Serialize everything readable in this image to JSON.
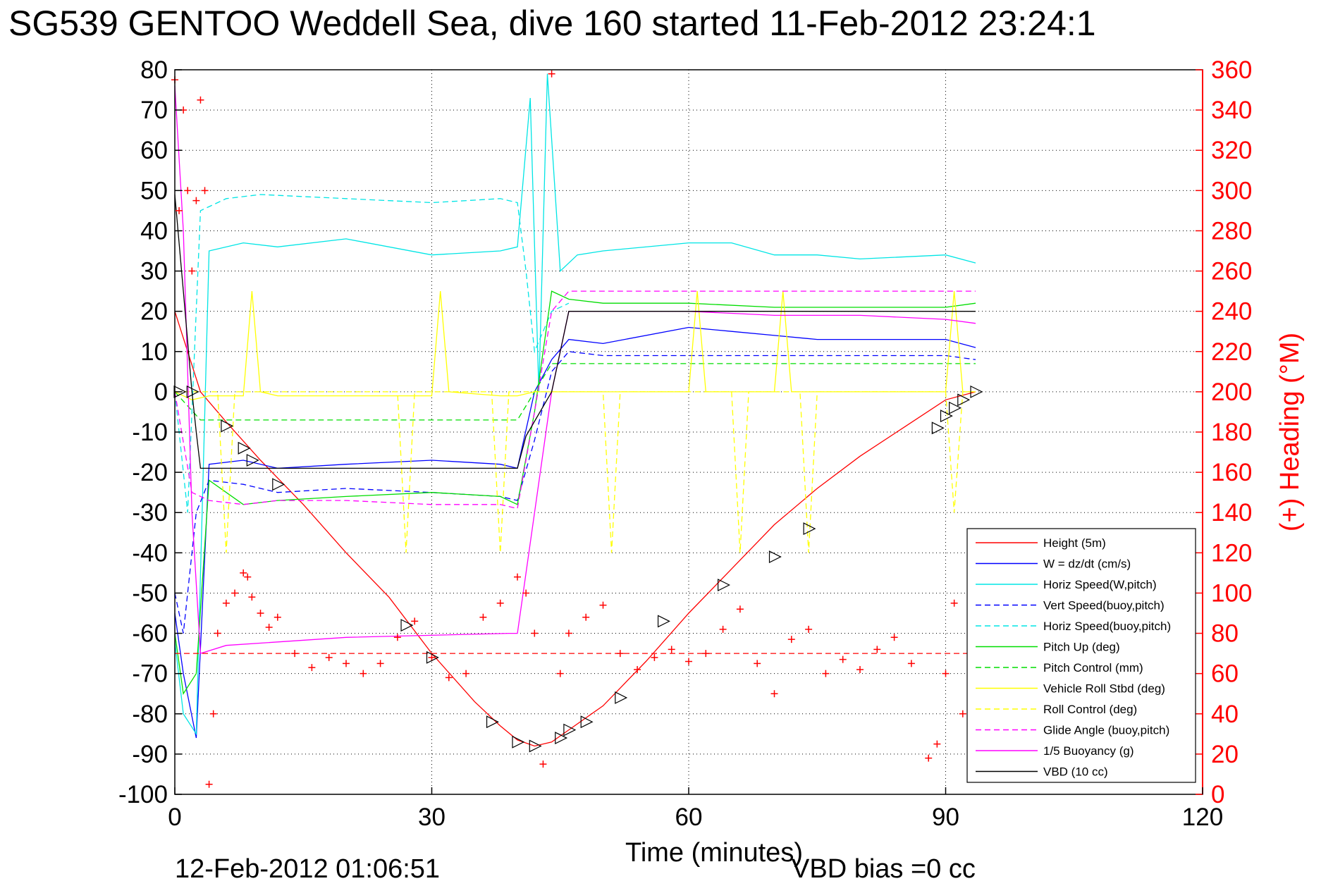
{
  "chart_data": {
    "type": "line",
    "title": "SG539 GENTOO Weddell Sea, dive 160 started 11-Feb-2012 23:24:1",
    "xlabel": "Time (minutes)",
    "ylabel_right": "(+) Heading (°M)",
    "footer_left": "12-Feb-2012 01:06:51",
    "footer_right": "VBD bias =0 cc",
    "xlim": [
      0,
      120
    ],
    "ylim_left": [
      -100,
      80
    ],
    "ylim_right": [
      0,
      360
    ],
    "xticks": [
      0,
      30,
      60,
      90,
      120
    ],
    "yticks_left": [
      80,
      70,
      60,
      50,
      40,
      30,
      20,
      10,
      0,
      -10,
      -20,
      -30,
      -40,
      -50,
      -60,
      -70,
      -80,
      -90,
      -100
    ],
    "yticks_right": [
      360,
      340,
      320,
      300,
      280,
      260,
      240,
      220,
      200,
      180,
      160,
      140,
      120,
      100,
      80,
      60,
      40,
      20,
      0
    ],
    "grid": true,
    "legend_position": "bottom-right",
    "colors": {
      "red": "#ff0000",
      "blue": "#0000ff",
      "cyan": "#00e5e5",
      "green": "#00dd00",
      "yellow": "#ffff00",
      "magenta": "#ff00ff",
      "black": "#000000"
    },
    "series": [
      {
        "name": "Height (5m)",
        "color": "red",
        "style": "solid",
        "x": [
          0,
          3,
          6,
          10,
          15,
          20,
          25,
          30,
          35,
          38,
          40,
          42,
          44,
          46,
          50,
          55,
          60,
          65,
          70,
          75,
          80,
          85,
          90,
          93.5
        ],
        "y": [
          20,
          0,
          -7.5,
          -17,
          -28,
          -40,
          -51,
          -65,
          -77,
          -83,
          -86.5,
          -88,
          -87,
          -84,
          -78,
          -67,
          -55,
          -44,
          -33,
          -24,
          -16,
          -9,
          -2,
          0
        ]
      },
      {
        "name": "W = dz/dt (cm/s)",
        "color": "blue",
        "style": "solid",
        "x": [
          0,
          1,
          2.5,
          4,
          8,
          12,
          20,
          30,
          38,
          40,
          42,
          44,
          46,
          50,
          60,
          65,
          70,
          75,
          80,
          90,
          93.5
        ],
        "y": [
          -55,
          -70,
          -86,
          -18,
          -17,
          -19,
          -18,
          -17,
          -18,
          -19,
          0,
          8,
          13,
          12,
          16,
          15,
          14,
          13,
          13,
          13,
          11
        ]
      },
      {
        "name": "Horiz Speed(W,pitch)",
        "color": "cyan",
        "style": "solid",
        "x": [
          0,
          1,
          2.5,
          4,
          8,
          12,
          20,
          30,
          38,
          40,
          41.5,
          42.5,
          43.5,
          45,
          47,
          50,
          60,
          65,
          70,
          75,
          80,
          90,
          93.5
        ],
        "y": [
          -62,
          -80,
          -85,
          35,
          37,
          36,
          38,
          34,
          35,
          36,
          73,
          0,
          79,
          30,
          34,
          35,
          37,
          37,
          34,
          34,
          33,
          34,
          32
        ]
      },
      {
        "name": "Vert Speed(buoy,pitch)",
        "color": "blue",
        "style": "dashed",
        "x": [
          0,
          1,
          2.5,
          4,
          8,
          12,
          20,
          30,
          38,
          40,
          42,
          44,
          46,
          50,
          60,
          70,
          80,
          90,
          93.5
        ],
        "y": [
          -50,
          -60,
          -30,
          -22,
          -23,
          -25,
          -24,
          -25,
          -26,
          -27,
          -12,
          5,
          10,
          9,
          9,
          9,
          9,
          9,
          8
        ]
      },
      {
        "name": "Horiz Speed(buoy,pitch)",
        "color": "cyan",
        "style": "dashed",
        "x": [
          0,
          1.5,
          3,
          6,
          10,
          20,
          30,
          38,
          40,
          41,
          42,
          44,
          46
        ],
        "y": [
          0,
          -30,
          45,
          48,
          49,
          48,
          47,
          48,
          47,
          30,
          10,
          20,
          22
        ]
      },
      {
        "name": "Pitch Up (deg)",
        "color": "green",
        "style": "solid",
        "x": [
          0,
          1,
          2.5,
          4,
          8,
          12,
          20,
          30,
          38,
          40,
          42,
          44,
          46,
          50,
          60,
          70,
          80,
          90,
          93.5
        ],
        "y": [
          -60,
          -75,
          -70,
          -22,
          -28,
          -27,
          -26,
          -25,
          -26,
          -28,
          -5,
          25,
          23,
          22,
          22,
          21,
          21,
          21,
          22
        ]
      },
      {
        "name": "Pitch Control (mm)",
        "color": "green",
        "style": "dashed",
        "x": [
          0,
          3,
          6,
          10,
          20,
          30,
          38,
          40,
          42,
          44,
          46,
          50,
          60,
          70,
          80,
          90,
          93.5
        ],
        "y": [
          0,
          -7,
          -7,
          -7,
          -7,
          -7,
          -7,
          -7,
          0,
          7,
          7,
          7,
          7,
          7,
          7,
          7,
          7
        ]
      },
      {
        "name": "Vehicle Roll Stbd (deg)",
        "color": "yellow",
        "style": "solid",
        "x": [
          0,
          2,
          4,
          8,
          9,
          10,
          12,
          20,
          30,
          31,
          32,
          38,
          40,
          42,
          44,
          46,
          50,
          60,
          61,
          62,
          70,
          71,
          72,
          80,
          90,
          91,
          92,
          93.5
        ],
        "y": [
          0,
          -2,
          -1,
          -1,
          25,
          0,
          -1,
          -1,
          -1,
          25,
          0,
          -1,
          -1,
          0,
          0,
          0,
          0,
          0,
          25,
          0,
          0,
          25,
          0,
          0,
          0,
          25,
          0,
          0
        ]
      },
      {
        "name": "Roll Control (deg)",
        "color": "yellow",
        "style": "dashed",
        "x": [
          0,
          5,
          6,
          7,
          26,
          27,
          28,
          37,
          38,
          39,
          45,
          50,
          51,
          52,
          65,
          66,
          67,
          73,
          74,
          75,
          90,
          91,
          92,
          93.5
        ],
        "y": [
          0,
          0,
          -40,
          0,
          0,
          -40,
          0,
          0,
          -40,
          0,
          0,
          0,
          -40,
          0,
          0,
          -40,
          0,
          0,
          -40,
          0,
          0,
          -30,
          0,
          0
        ]
      },
      {
        "name": "Glide Angle (buoy,pitch)",
        "color": "magenta",
        "style": "dashed",
        "x": [
          0,
          2,
          4,
          8,
          12,
          20,
          30,
          38,
          40,
          42,
          44,
          46,
          50,
          60,
          70,
          80,
          90,
          93.5
        ],
        "y": [
          0,
          -25,
          -27,
          -28,
          -27,
          -27,
          -28,
          -28,
          -29,
          -5,
          20,
          25,
          25,
          25,
          25,
          25,
          25,
          25
        ]
      },
      {
        "name": "1/5 Buoyancy (g)",
        "color": "magenta",
        "style": "solid",
        "x": [
          0,
          1,
          2,
          3,
          6,
          20,
          39,
          40,
          41,
          44,
          46,
          50,
          60,
          70,
          80,
          90,
          93.5
        ],
        "y": [
          76,
          40,
          -30,
          -65,
          -63,
          -61,
          -60,
          -60,
          -45,
          0,
          20,
          20,
          20,
          19,
          19,
          18,
          17
        ]
      },
      {
        "name": "VBD (10 cc)",
        "color": "black",
        "style": "solid",
        "x": [
          0,
          1,
          2,
          2.5,
          3,
          20,
          39,
          40,
          41,
          44,
          45,
          46,
          93.5
        ],
        "y": [
          49,
          25,
          0,
          -10,
          -19,
          -19,
          -19,
          -19,
          -11,
          0,
          10,
          20,
          20
        ]
      }
    ],
    "heading": {
      "name": "(+) Heading (°M)",
      "color": "red",
      "marker": "+",
      "axis": "right",
      "x": [
        0,
        0.5,
        1,
        1.5,
        2,
        2.5,
        3,
        3.5,
        4,
        4.5,
        5,
        6,
        7,
        8,
        8.5,
        9,
        10,
        11,
        12,
        14,
        16,
        18,
        20,
        22,
        24,
        26,
        28,
        30,
        32,
        34,
        36,
        38,
        40,
        41,
        42,
        43,
        44,
        45,
        46,
        48,
        50,
        52,
        54,
        56,
        58,
        60,
        62,
        64,
        66,
        68,
        70,
        72,
        74,
        76,
        78,
        80,
        82,
        84,
        86,
        88,
        89,
        90,
        91,
        92,
        93
      ],
      "y": [
        355,
        290,
        340,
        300,
        260,
        295,
        345,
        300,
        5,
        40,
        80,
        95,
        100,
        110,
        108,
        98,
        90,
        83,
        88,
        70,
        63,
        68,
        65,
        60,
        65,
        78,
        86,
        68,
        58,
        60,
        88,
        95,
        108,
        100,
        80,
        15,
        358,
        60,
        80,
        88,
        94,
        70,
        62,
        68,
        72,
        66,
        70,
        82,
        92,
        65,
        50,
        77,
        82,
        60,
        67,
        62,
        72,
        78,
        65,
        18,
        25,
        60,
        95,
        40,
        105
      ]
    },
    "reference_line_right": 70,
    "triangle_markers": {
      "x": [
        0.5,
        2,
        6,
        8,
        9,
        12,
        27,
        30,
        37,
        40,
        42,
        45,
        46,
        48,
        52,
        57,
        64,
        70,
        74,
        89,
        90,
        91,
        92,
        93.5
      ],
      "y": [
        0,
        0,
        -8.5,
        -14,
        -17,
        -23,
        -58,
        -66,
        -82,
        -87,
        -88,
        -86,
        -84,
        -82,
        -76,
        -57,
        -48,
        -41,
        -34,
        -9,
        -6,
        -4,
        -2,
        0
      ]
    }
  }
}
